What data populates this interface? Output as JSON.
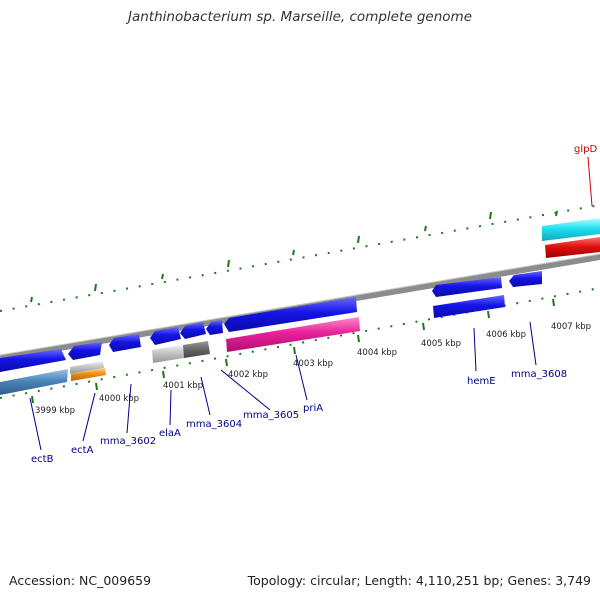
{
  "title": "Janthinobacterium sp. Marseille, complete genome",
  "footer": {
    "accession": "Accession: NC_009659",
    "topology": "Topology: circular; Length: 4,110,251 bp; Genes: 3,749"
  },
  "colors": {
    "forward_cds": "#1010e0",
    "pseudo_pink": "#e8209a",
    "rna_red": "#e01010",
    "rna_cyan": "#20e0f0",
    "steel_blue": "#4a86b8",
    "orange": "#f0900e",
    "grey": "#c0c0c0",
    "dark_grey": "#6a6a6a",
    "backbone": "#8c8c8c",
    "tick_green": "#1a7a1a",
    "label_blue": "#00008b",
    "label_red": "#cc0000"
  },
  "scale_labels": [
    "3999 kbp",
    "4000 kbp",
    "4001 kbp",
    "4002 kbp",
    "4003 kbp",
    "4004 kbp",
    "4005 kbp",
    "4006 kbp",
    "4007 kbp"
  ],
  "genes": [
    {
      "name": "ectB",
      "color": "label_blue"
    },
    {
      "name": "ectA",
      "color": "label_blue"
    },
    {
      "name": "mma_3602",
      "color": "label_blue"
    },
    {
      "name": "elaA",
      "color": "label_blue"
    },
    {
      "name": "mma_3604",
      "color": "label_blue"
    },
    {
      "name": "mma_3605",
      "color": "label_blue"
    },
    {
      "name": "priA",
      "color": "label_blue"
    },
    {
      "name": "hemE",
      "color": "label_blue"
    },
    {
      "name": "mma_3608",
      "color": "label_blue"
    },
    {
      "name": "glpD",
      "color": "label_red"
    }
  ]
}
